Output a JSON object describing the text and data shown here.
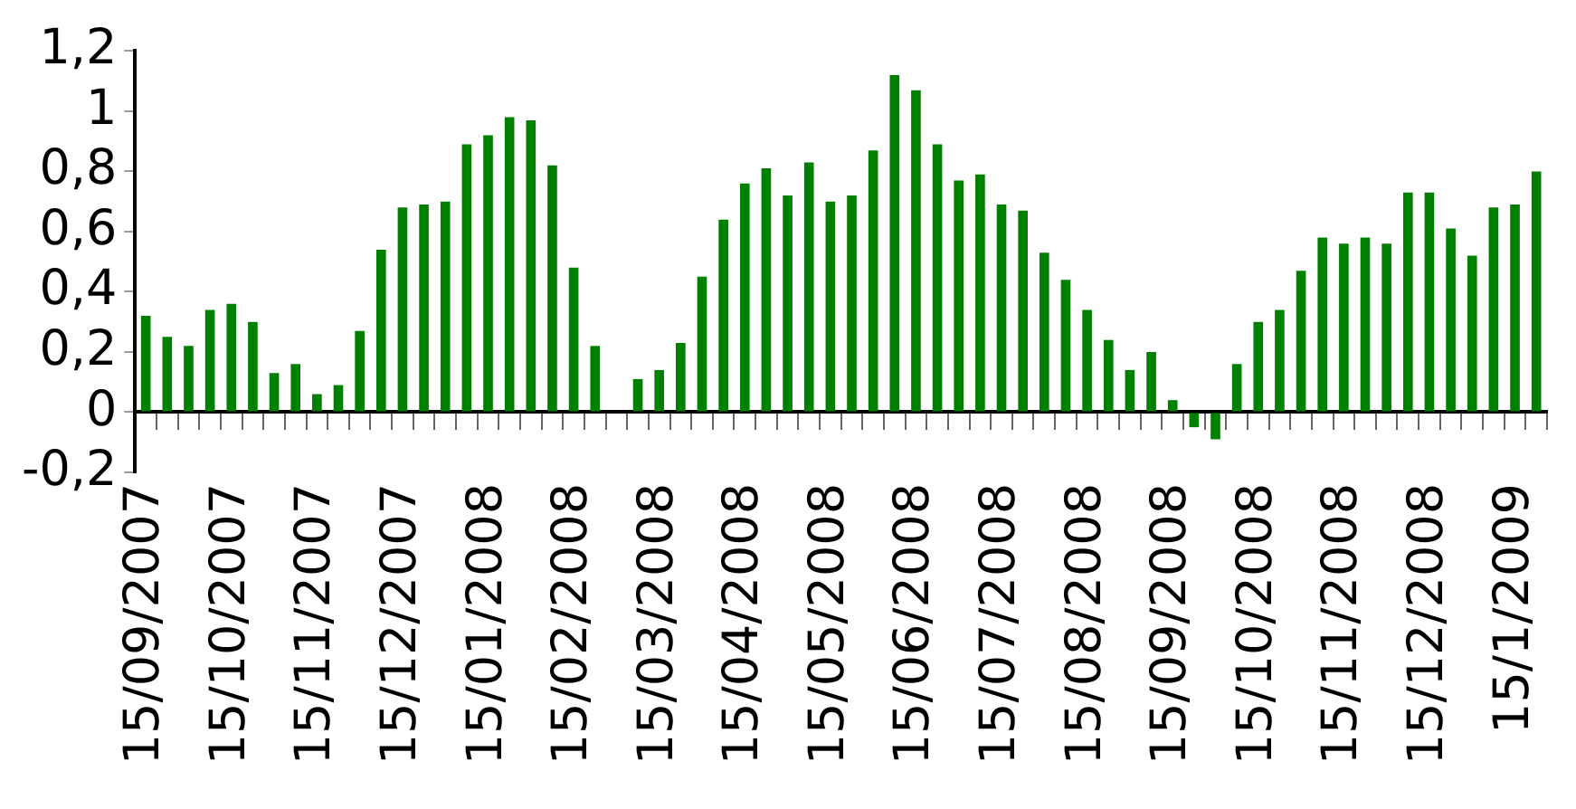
{
  "chart_data": {
    "type": "bar",
    "categories": [
      "15/09/2007",
      null,
      null,
      null,
      "15/10/2007",
      null,
      null,
      null,
      "15/11/2007",
      null,
      null,
      null,
      "15/12/2007",
      null,
      null,
      null,
      "15/01/2008",
      null,
      null,
      null,
      "15/02/2008",
      null,
      null,
      null,
      "15/03/2008",
      null,
      null,
      null,
      "15/04/2008",
      null,
      null,
      null,
      "15/05/2008",
      null,
      null,
      null,
      "15/06/2008",
      null,
      null,
      null,
      "15/07/2008",
      null,
      null,
      null,
      "15/08/2008",
      null,
      null,
      null,
      "15/09/2008",
      null,
      null,
      null,
      "15/10/2008",
      null,
      null,
      null,
      "15/11/2008",
      null,
      null,
      null,
      "15/12/2008",
      null,
      null,
      null,
      "15/1/2009",
      null
    ],
    "values": [
      0.32,
      0.25,
      0.22,
      0.34,
      0.36,
      0.3,
      0.13,
      0.16,
      0.06,
      0.09,
      0.27,
      0.54,
      0.68,
      0.69,
      0.7,
      0.89,
      0.92,
      0.98,
      0.97,
      0.82,
      0.48,
      0.22,
      null,
      0.11,
      0.14,
      0.23,
      0.45,
      0.64,
      0.76,
      0.81,
      0.72,
      0.83,
      0.7,
      0.72,
      0.87,
      1.12,
      1.07,
      0.89,
      0.77,
      0.79,
      0.69,
      0.67,
      0.53,
      0.44,
      0.34,
      0.24,
      0.14,
      0.2,
      0.04,
      -0.05,
      -0.09,
      0.16,
      0.3,
      0.34,
      0.47,
      0.58,
      0.56,
      0.58,
      0.56,
      0.73,
      0.73,
      0.61,
      0.52,
      0.68,
      0.69,
      0.8
    ],
    "color": "#008000",
    "ylim": [
      -0.2,
      1.2
    ],
    "yticks": [
      {
        "value": -0.2,
        "label": "-0,2"
      },
      {
        "value": 0,
        "label": "0"
      },
      {
        "value": 0.2,
        "label": "0,2"
      },
      {
        "value": 0.4,
        "label": "0,4"
      },
      {
        "value": 0.6,
        "label": "0,6"
      },
      {
        "value": 0.8,
        "label": "0,8"
      },
      {
        "value": 1,
        "label": "1"
      },
      {
        "value": 1.2,
        "label": "1,2"
      }
    ],
    "grid": false,
    "legend": false
  }
}
